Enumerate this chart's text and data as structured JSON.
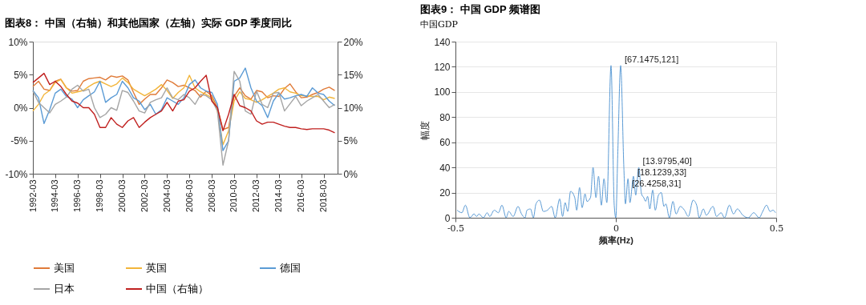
{
  "chart_data": [
    {
      "type": "line",
      "title": "图表8： 中国（右轴）和其他国家（左轴）实际 GDP 季度同比",
      "x": [
        "1992-03",
        "1992-09",
        "1993-03",
        "1993-09",
        "1994-03",
        "1994-09",
        "1995-03",
        "1995-09",
        "1996-03",
        "1996-09",
        "1997-03",
        "1997-09",
        "1998-03",
        "1998-09",
        "1999-03",
        "1999-09",
        "2000-03",
        "2000-09",
        "2001-03",
        "2001-09",
        "2002-03",
        "2002-09",
        "2003-03",
        "2003-09",
        "2004-03",
        "2004-09",
        "2005-03",
        "2005-09",
        "2006-03",
        "2006-09",
        "2007-03",
        "2007-09",
        "2008-03",
        "2008-09",
        "2009-03",
        "2009-09",
        "2010-03",
        "2010-09",
        "2011-03",
        "2011-09",
        "2012-03",
        "2012-09",
        "2013-03",
        "2013-09",
        "2014-03",
        "2014-09",
        "2015-03",
        "2015-09",
        "2016-03",
        "2016-09",
        "2017-03",
        "2017-09",
        "2018-03",
        "2018-09",
        "2019-03"
      ],
      "xlim": [
        "1992-03",
        "2019-06"
      ],
      "xticks": [
        "1992-03",
        "1994-03",
        "1996-03",
        "1998-03",
        "2000-03",
        "2002-03",
        "2004-03",
        "2006-03",
        "2008-03",
        "2010-03",
        "2012-03",
        "2014-03",
        "2016-03",
        "2018-03"
      ],
      "ylim": [
        -10,
        10
      ],
      "yticks": [
        {
          "value": -10,
          "label": "-10%"
        },
        {
          "value": -5,
          "label": "-5%"
        },
        {
          "value": 0,
          "label": "0%"
        },
        {
          "value": 5,
          "label": "5%"
        },
        {
          "value": 10,
          "label": "10%"
        }
      ],
      "y2lim": [
        0,
        20
      ],
      "y2ticks": [
        {
          "value": 0,
          "label": "0%"
        },
        {
          "value": 5,
          "label": "5%"
        },
        {
          "value": 10,
          "label": "10%"
        },
        {
          "value": 15,
          "label": "15%"
        },
        {
          "value": 20,
          "label": "20%"
        }
      ],
      "legend": "bottom",
      "series": [
        {
          "name": "美国",
          "color": "#e07b39",
          "values": [
            3.2,
            4.0,
            2.8,
            2.6,
            4.0,
            4.3,
            3.0,
            2.5,
            2.6,
            4.0,
            4.4,
            4.5,
            4.6,
            4.2,
            4.8,
            4.6,
            4.8,
            4.2,
            2.3,
            0.5,
            1.3,
            2.0,
            2.0,
            3.0,
            4.2,
            3.8,
            3.2,
            3.4,
            3.0,
            2.6,
            1.6,
            2.5,
            1.8,
            0.0,
            -3.3,
            -3.0,
            1.7,
            3.0,
            1.8,
            1.3,
            2.6,
            2.4,
            1.5,
            1.8,
            1.7,
            2.9,
            3.6,
            2.4,
            1.5,
            1.6,
            2.0,
            2.3,
            2.8,
            3.1,
            2.6
          ]
        },
        {
          "name": "英国",
          "color": "#f2b53a",
          "values": [
            -0.5,
            0.5,
            2.0,
            2.6,
            3.8,
            4.3,
            3.0,
            2.2,
            2.4,
            2.6,
            3.2,
            3.7,
            4.0,
            3.6,
            3.2,
            3.6,
            4.5,
            3.8,
            2.8,
            2.3,
            1.8,
            2.3,
            2.8,
            3.5,
            2.6,
            1.4,
            2.3,
            3.0,
            4.9,
            3.0,
            2.4,
            2.0,
            1.5,
            -0.5,
            -5.6,
            -3.5,
            1.0,
            2.4,
            1.4,
            1.2,
            0.8,
            1.2,
            1.7,
            2.2,
            2.8,
            3.0,
            2.4,
            2.2,
            1.8,
            1.8,
            1.7,
            1.7,
            1.2,
            1.6,
            1.4
          ]
        },
        {
          "name": "德国",
          "color": "#5b9bd5",
          "values": [
            2.6,
            1.5,
            -2.4,
            -0.3,
            2.2,
            2.8,
            1.7,
            1.3,
            0.0,
            1.2,
            1.8,
            2.4,
            4.0,
            0.8,
            1.5,
            2.0,
            4.0,
            3.0,
            1.5,
            1.0,
            -0.3,
            0.5,
            -1.0,
            -0.3,
            1.5,
            1.0,
            0.5,
            1.5,
            3.5,
            4.2,
            3.0,
            2.5,
            2.3,
            0.5,
            -6.5,
            -5.0,
            4.0,
            4.5,
            6.0,
            3.0,
            1.0,
            0.3,
            -1.5,
            1.0,
            2.2,
            1.3,
            1.5,
            1.8,
            2.0,
            1.7,
            3.0,
            2.2,
            2.0,
            1.0,
            0.3
          ]
        },
        {
          "name": "日本",
          "color": "#a5a5a5",
          "values": [
            2.5,
            0.8,
            0.0,
            -0.8,
            0.5,
            1.0,
            1.6,
            2.8,
            3.4,
            2.5,
            2.8,
            0.0,
            -1.5,
            -1.0,
            0.0,
            -0.4,
            2.6,
            2.3,
            1.0,
            -0.5,
            -0.8,
            0.8,
            1.2,
            1.5,
            3.0,
            1.5,
            1.2,
            2.0,
            1.5,
            0.5,
            2.0,
            1.8,
            1.2,
            -0.5,
            -8.7,
            -5.0,
            5.5,
            4.0,
            -0.5,
            -1.0,
            2.5,
            0.5,
            0.0,
            2.2,
            2.3,
            -0.5,
            0.6,
            1.7,
            0.3,
            1.0,
            1.5,
            2.0,
            1.0,
            0.0,
            0.5
          ]
        },
        {
          "name": "中国（右轴）",
          "color": "#c0201f",
          "axis": "y2",
          "values": [
            13.8,
            14.5,
            15.2,
            13.5,
            14.0,
            13.2,
            12.0,
            11.0,
            10.7,
            10.0,
            10.0,
            9.0,
            7.0,
            7.0,
            8.5,
            7.5,
            7.0,
            8.0,
            8.5,
            7.0,
            7.8,
            8.5,
            9.0,
            9.5,
            10.8,
            9.5,
            11.0,
            11.2,
            12.5,
            13.0,
            14.0,
            14.9,
            11.0,
            10.0,
            6.5,
            9.0,
            12.0,
            10.3,
            10.0,
            9.5,
            8.0,
            7.5,
            7.8,
            7.8,
            7.5,
            7.2,
            7.0,
            7.0,
            6.8,
            6.7,
            6.8,
            6.8,
            6.8,
            6.6,
            6.2
          ]
        }
      ]
    },
    {
      "type": "line",
      "title": "图表9： 中国 GDP 频谱图",
      "subtitle": "中国GDP",
      "xlabel": "频率(Hz)",
      "ylabel": "幅度",
      "x": [
        -0.495,
        -0.48,
        -0.469,
        -0.455,
        -0.442,
        -0.434,
        -0.427,
        -0.413,
        -0.401,
        -0.393,
        -0.379,
        -0.366,
        -0.355,
        -0.342,
        -0.334,
        -0.32,
        -0.305,
        -0.294,
        -0.283,
        -0.277,
        -0.266,
        -0.257,
        -0.249,
        -0.238,
        -0.226,
        -0.213,
        -0.2,
        -0.189,
        -0.175,
        -0.166,
        -0.158,
        -0.15,
        -0.141,
        -0.128,
        -0.122,
        -0.113,
        -0.105,
        -0.096,
        -0.09,
        -0.079,
        -0.071,
        -0.062,
        -0.054,
        -0.045,
        -0.037,
        -0.028,
        -0.015,
        -0.005,
        0,
        0.006,
        0.015,
        0.025,
        0.03,
        0.038,
        0.044,
        0.055,
        0.062,
        0.0715,
        0.08,
        0.087,
        0.093,
        0.099,
        0.106,
        0.115,
        0.123,
        0.133,
        0.142,
        0.15,
        0.156,
        0.167,
        0.178,
        0.188,
        0.201,
        0.214,
        0.226,
        0.241,
        0.252,
        0.26,
        0.273,
        0.282,
        0.303,
        0.314,
        0.328,
        0.339,
        0.354,
        0.367,
        0.379,
        0.396,
        0.413,
        0.43,
        0.447,
        0.458,
        0.47,
        0.481,
        0.49,
        0.498
      ],
      "xlim": [
        -0.5,
        0.5
      ],
      "xticks": [
        -0.5,
        0,
        0.5
      ],
      "ylim": [
        0,
        140
      ],
      "yticks": [
        0,
        20,
        40,
        60,
        80,
        100,
        120,
        140
      ],
      "grid": "y",
      "series": [
        {
          "color": "#5b9bd5",
          "values": [
            6,
            4,
            10,
            0,
            3,
            1,
            3,
            0,
            4,
            1,
            6,
            4,
            10,
            0,
            5,
            1,
            9,
            3,
            0,
            6,
            7,
            0,
            11,
            14,
            5,
            6,
            9,
            0,
            15,
            1,
            12,
            5,
            21,
            16,
            6,
            24,
            8,
            19,
            13,
            16,
            40,
            16,
            33,
            10,
            31,
            12,
            121,
            10,
            0,
            50,
            121,
            40,
            11,
            31,
            12,
            33,
            18,
            40,
            19,
            16,
            13,
            17,
            7,
            22,
            6,
            18,
            20,
            9,
            11,
            0,
            13,
            3,
            9,
            6,
            1,
            14,
            10,
            0,
            7,
            2,
            9,
            1,
            4,
            0,
            10,
            3,
            7,
            2,
            0,
            4,
            0,
            5,
            10,
            5,
            6,
            4
          ]
        }
      ],
      "annotations": [
        {
          "text": "[67.1475,121]",
          "x": 0.015,
          "y": 121
        },
        {
          "text": "[13.9795,40]",
          "x": 0.0715,
          "y": 40
        },
        {
          "text": "[18.1239,33]",
          "x": 0.055,
          "y": 33
        },
        {
          "text": "[26.4258,31]",
          "x": 0.038,
          "y": 31
        }
      ]
    }
  ]
}
